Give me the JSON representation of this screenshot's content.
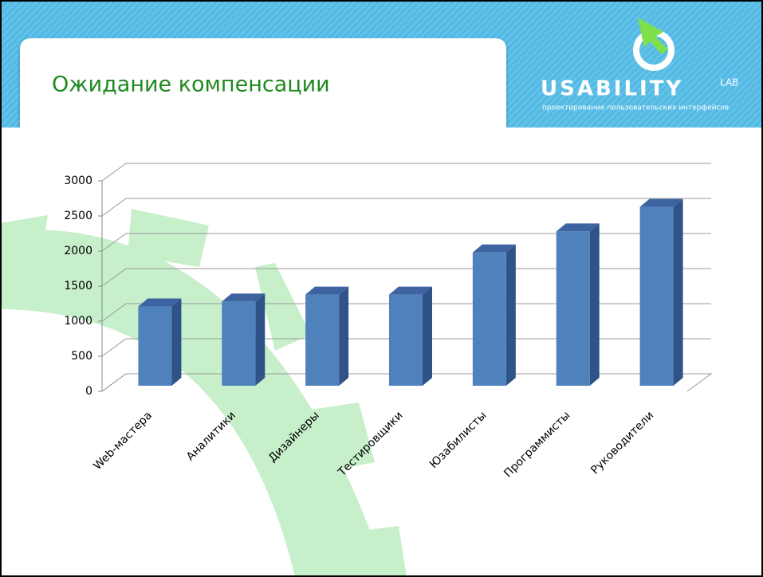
{
  "header": {
    "title": "Ожидание компенсации",
    "logo": {
      "name": "USABILITY",
      "suffix": "LAB",
      "tagline": "проектирование пользовательских интерфейсов"
    }
  },
  "chart_data": {
    "type": "bar",
    "categories": [
      "Web-мастера",
      "Аналитики",
      "Дизайнеры",
      "Тестировщики",
      "Юзабилисты",
      "Программисты",
      "Руководители"
    ],
    "values": [
      1130,
      1200,
      1300,
      1300,
      1900,
      2200,
      2550
    ],
    "color": "#4f81bd",
    "ylim": [
      0,
      3000
    ],
    "yticks": [
      0,
      500,
      1000,
      1500,
      2000,
      2500,
      3000
    ],
    "grid": true
  }
}
